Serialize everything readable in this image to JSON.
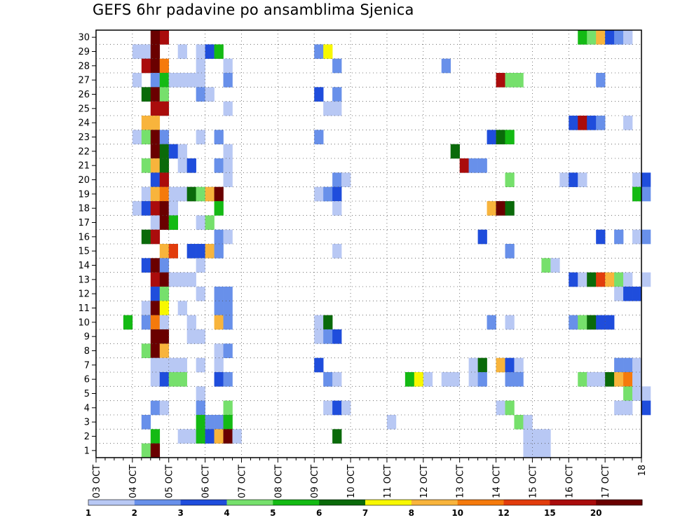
{
  "chart_data": {
    "type": "heatmap",
    "title": "GEFS 6hr padavine po ansamblima Sjenica",
    "xlabel": "",
    "ylabel": "",
    "x_tick_labels": [
      "03 OCT",
      "04 OCT",
      "05 OCT",
      "06 OCT",
      "07 OCT",
      "08 OCT",
      "09 OCT",
      "10 OCT",
      "11 OCT",
      "12 OCT",
      "13 OCT",
      "14 OCT",
      "15 OCT",
      "16 OCT",
      "17 OCT",
      "18"
    ],
    "x_tick_days": [
      0,
      1,
      2,
      3,
      4,
      5,
      6,
      7,
      8,
      9,
      10,
      11,
      12,
      13,
      14,
      15
    ],
    "xlim_days": [
      0,
      15
    ],
    "x_origin_date": "03 OCT 00Z",
    "y_tick_labels": [
      "1",
      "2",
      "3",
      "4",
      "5",
      "6",
      "7",
      "8",
      "9",
      "10",
      "11",
      "12",
      "13",
      "14",
      "15",
      "16",
      "17",
      "18",
      "19",
      "20",
      "21",
      "22",
      "23",
      "24",
      "25",
      "26",
      "27",
      "28",
      "29",
      "30"
    ],
    "ylim": [
      0,
      30
    ],
    "grid": true,
    "colorbar": {
      "labels": [
        "1",
        "2",
        "3",
        "4",
        "5",
        "6",
        "7",
        "8",
        "10",
        "12",
        "15",
        "20"
      ],
      "colors": [
        "#b8c8f4",
        "#6890ea",
        "#1f4ddc",
        "#76e06c",
        "#14ba14",
        "#0a6a0a",
        "#f8f800",
        "#f8b43c",
        "#f57a0c",
        "#e23c0c",
        "#aa0c0c",
        "#6a0000"
      ]
    },
    "cells_note": "each cell: [member, lead_time_days, color_class_index]",
    "cells": [
      [
        30,
        1.75,
        10
      ],
      [
        30,
        1.5,
        11
      ],
      [
        30,
        13.25,
        4
      ],
      [
        30,
        13.5,
        3
      ],
      [
        30,
        13.75,
        7
      ],
      [
        30,
        14,
        2
      ],
      [
        30,
        14.25,
        1
      ],
      [
        30,
        14.5,
        0
      ],
      [
        29,
        1.0,
        0
      ],
      [
        29,
        1.25,
        0
      ],
      [
        29,
        1.5,
        11
      ],
      [
        29,
        2.25,
        0
      ],
      [
        29,
        2.75,
        0
      ],
      [
        29,
        3.0,
        2
      ],
      [
        29,
        3.25,
        4
      ],
      [
        29,
        6.0,
        1
      ],
      [
        29,
        6.25,
        6
      ],
      [
        28,
        1.25,
        10
      ],
      [
        28,
        1.5,
        11
      ],
      [
        28,
        1.75,
        8
      ],
      [
        28,
        2.75,
        0
      ],
      [
        28,
        3.5,
        0
      ],
      [
        28,
        6.5,
        1
      ],
      [
        28,
        9.5,
        1
      ],
      [
        27,
        1.0,
        0
      ],
      [
        27,
        1.5,
        1
      ],
      [
        27,
        1.75,
        4
      ],
      [
        27,
        2.0,
        0
      ],
      [
        27,
        2.25,
        0
      ],
      [
        27,
        2.5,
        0
      ],
      [
        27,
        2.75,
        0
      ],
      [
        27,
        3.5,
        1
      ],
      [
        27,
        11.0,
        10
      ],
      [
        27,
        11.25,
        3
      ],
      [
        27,
        11.5,
        3
      ],
      [
        27,
        13.75,
        1
      ],
      [
        26,
        1.25,
        5
      ],
      [
        26,
        1.5,
        11
      ],
      [
        26,
        1.75,
        3
      ],
      [
        26,
        2.75,
        1
      ],
      [
        26,
        3.0,
        0
      ],
      [
        26,
        6.0,
        2
      ],
      [
        26,
        6.5,
        1
      ],
      [
        25,
        1.5,
        10
      ],
      [
        25,
        1.75,
        10
      ],
      [
        25,
        3.5,
        0
      ],
      [
        25,
        6.25,
        0
      ],
      [
        25,
        6.5,
        0
      ],
      [
        24,
        1.25,
        7
      ],
      [
        24,
        1.5,
        7
      ],
      [
        24,
        13.0,
        2
      ],
      [
        24,
        13.25,
        10
      ],
      [
        24,
        13.5,
        2
      ],
      [
        24,
        13.75,
        1
      ],
      [
        24,
        14.5,
        0
      ],
      [
        23,
        1.0,
        0
      ],
      [
        23,
        1.25,
        3
      ],
      [
        23,
        1.5,
        11
      ],
      [
        23,
        1.75,
        1
      ],
      [
        23,
        2.75,
        0
      ],
      [
        23,
        3.25,
        1
      ],
      [
        23,
        6.0,
        1
      ],
      [
        23,
        10.75,
        2
      ],
      [
        23,
        11.0,
        5
      ],
      [
        23,
        11.25,
        4
      ],
      [
        22,
        1.5,
        11
      ],
      [
        22,
        1.75,
        5
      ],
      [
        22,
        2.0,
        2
      ],
      [
        22,
        2.25,
        0
      ],
      [
        22,
        3.5,
        0
      ],
      [
        22,
        9.75,
        5
      ],
      [
        21,
        1.25,
        3
      ],
      [
        21,
        1.5,
        7
      ],
      [
        21,
        1.75,
        5
      ],
      [
        21,
        2.25,
        0
      ],
      [
        21,
        2.5,
        2
      ],
      [
        21,
        3.25,
        1
      ],
      [
        21,
        3.5,
        0
      ],
      [
        21,
        10.0,
        10
      ],
      [
        21,
        10.25,
        1
      ],
      [
        21,
        10.5,
        1
      ],
      [
        20,
        1.5,
        2
      ],
      [
        20,
        1.75,
        10
      ],
      [
        20,
        3.5,
        0
      ],
      [
        20,
        6.5,
        1
      ],
      [
        20,
        6.75,
        0
      ],
      [
        20,
        11.25,
        3
      ],
      [
        20,
        12.75,
        0
      ],
      [
        20,
        13.0,
        2
      ],
      [
        20,
        13.25,
        0
      ],
      [
        20,
        14.75,
        0
      ],
      [
        20,
        15.0,
        2
      ],
      [
        19,
        1.25,
        0
      ],
      [
        19,
        1.5,
        7
      ],
      [
        19,
        1.75,
        8
      ],
      [
        19,
        2.0,
        0
      ],
      [
        19,
        2.25,
        0
      ],
      [
        19,
        2.5,
        5
      ],
      [
        19,
        2.75,
        3
      ],
      [
        19,
        3.0,
        7
      ],
      [
        19,
        3.25,
        11
      ],
      [
        19,
        6.0,
        0
      ],
      [
        19,
        6.25,
        1
      ],
      [
        19,
        6.5,
        2
      ],
      [
        19,
        14.75,
        4
      ],
      [
        19,
        15.0,
        1
      ],
      [
        18,
        1.0,
        0
      ],
      [
        18,
        1.25,
        2
      ],
      [
        18,
        1.5,
        10
      ],
      [
        18,
        1.75,
        11
      ],
      [
        18,
        2.0,
        0
      ],
      [
        18,
        3.25,
        4
      ],
      [
        18,
        6.5,
        0
      ],
      [
        18,
        10.75,
        7
      ],
      [
        18,
        11.0,
        11
      ],
      [
        18,
        11.25,
        5
      ],
      [
        17,
        1.5,
        0
      ],
      [
        17,
        1.75,
        11
      ],
      [
        17,
        2.0,
        4
      ],
      [
        17,
        2.75,
        0
      ],
      [
        17,
        3.0,
        3
      ],
      [
        16,
        1.25,
        5
      ],
      [
        16,
        1.5,
        10
      ],
      [
        16,
        3.25,
        1
      ],
      [
        16,
        3.5,
        0
      ],
      [
        16,
        10.5,
        2
      ],
      [
        16,
        13.75,
        2
      ],
      [
        16,
        14.25,
        1
      ],
      [
        16,
        14.75,
        0
      ],
      [
        16,
        15.0,
        1
      ],
      [
        15,
        1.75,
        7
      ],
      [
        15,
        2.0,
        9
      ],
      [
        15,
        2.5,
        2
      ],
      [
        15,
        2.75,
        2
      ],
      [
        15,
        3.0,
        7
      ],
      [
        15,
        3.25,
        1
      ],
      [
        15,
        6.5,
        0
      ],
      [
        15,
        11.25,
        1
      ],
      [
        14,
        1.25,
        2
      ],
      [
        14,
        1.5,
        11
      ],
      [
        14,
        1.75,
        1
      ],
      [
        14,
        2.75,
        0
      ],
      [
        14,
        12.25,
        3
      ],
      [
        14,
        12.5,
        0
      ],
      [
        13,
        1.5,
        10
      ],
      [
        13,
        1.75,
        11
      ],
      [
        13,
        2.0,
        0
      ],
      [
        13,
        2.25,
        0
      ],
      [
        13,
        2.5,
        0
      ],
      [
        13,
        13.0,
        2
      ],
      [
        13,
        13.25,
        0
      ],
      [
        13,
        13.5,
        5
      ],
      [
        13,
        13.75,
        9
      ],
      [
        13,
        14.0,
        7
      ],
      [
        13,
        14.25,
        3
      ],
      [
        13,
        14.5,
        0
      ],
      [
        13,
        15.0,
        0
      ],
      [
        12,
        1.5,
        2
      ],
      [
        12,
        1.75,
        3
      ],
      [
        12,
        2.75,
        0
      ],
      [
        12,
        3.25,
        1
      ],
      [
        12,
        3.5,
        1
      ],
      [
        12,
        14.25,
        0
      ],
      [
        12,
        14.5,
        2
      ],
      [
        12,
        14.75,
        2
      ],
      [
        11,
        1.25,
        0
      ],
      [
        11,
        1.5,
        11
      ],
      [
        11,
        1.75,
        6
      ],
      [
        11,
        2.25,
        0
      ],
      [
        11,
        3.25,
        1
      ],
      [
        11,
        3.5,
        1
      ],
      [
        10,
        0.75,
        4
      ],
      [
        10,
        1.25,
        1
      ],
      [
        10,
        1.5,
        8
      ],
      [
        10,
        1.75,
        0
      ],
      [
        10,
        2.5,
        0
      ],
      [
        10,
        3.25,
        7
      ],
      [
        10,
        3.5,
        1
      ],
      [
        10,
        6.0,
        0
      ],
      [
        10,
        6.25,
        5
      ],
      [
        10,
        10.75,
        1
      ],
      [
        10,
        11.25,
        0
      ],
      [
        10,
        13.0,
        1
      ],
      [
        10,
        13.25,
        3
      ],
      [
        10,
        13.5,
        5
      ],
      [
        10,
        13.75,
        2
      ],
      [
        10,
        14.0,
        2
      ],
      [
        9,
        1.5,
        11
      ],
      [
        9,
        1.75,
        11
      ],
      [
        9,
        2.5,
        0
      ],
      [
        9,
        2.75,
        0
      ],
      [
        9,
        6.0,
        0
      ],
      [
        9,
        6.25,
        1
      ],
      [
        9,
        6.5,
        2
      ],
      [
        8,
        1.25,
        3
      ],
      [
        8,
        1.5,
        11
      ],
      [
        8,
        1.75,
        7
      ],
      [
        8,
        3.25,
        0
      ],
      [
        8,
        3.5,
        1
      ],
      [
        7,
        1.5,
        0
      ],
      [
        7,
        1.75,
        0
      ],
      [
        7,
        2.0,
        0
      ],
      [
        7,
        2.25,
        0
      ],
      [
        7,
        2.75,
        0
      ],
      [
        7,
        3.25,
        0
      ],
      [
        7,
        6.0,
        2
      ],
      [
        7,
        10.25,
        0
      ],
      [
        7,
        10.5,
        5
      ],
      [
        7,
        11.0,
        7
      ],
      [
        7,
        11.25,
        2
      ],
      [
        7,
        11.5,
        0
      ],
      [
        7,
        14.25,
        1
      ],
      [
        7,
        14.5,
        1
      ],
      [
        7,
        14.75,
        0
      ],
      [
        6,
        1.5,
        0
      ],
      [
        6,
        1.75,
        2
      ],
      [
        6,
        2.0,
        3
      ],
      [
        6,
        2.25,
        3
      ],
      [
        6,
        3.25,
        2
      ],
      [
        6,
        3.5,
        1
      ],
      [
        6,
        6.25,
        1
      ],
      [
        6,
        6.5,
        0
      ],
      [
        6,
        8.5,
        4
      ],
      [
        6,
        8.75,
        6
      ],
      [
        6,
        9.0,
        0
      ],
      [
        6,
        9.5,
        0
      ],
      [
        6,
        9.75,
        0
      ],
      [
        6,
        10.25,
        0
      ],
      [
        6,
        10.5,
        1
      ],
      [
        6,
        11.25,
        1
      ],
      [
        6,
        11.5,
        1
      ],
      [
        6,
        13.25,
        3
      ],
      [
        6,
        13.5,
        0
      ],
      [
        6,
        13.75,
        0
      ],
      [
        6,
        14.0,
        5
      ],
      [
        6,
        14.25,
        7
      ],
      [
        6,
        14.5,
        8
      ],
      [
        6,
        14.75,
        0
      ],
      [
        5,
        2.75,
        0
      ],
      [
        5,
        14.5,
        3
      ],
      [
        5,
        14.75,
        0
      ],
      [
        5,
        15.0,
        0
      ],
      [
        4,
        1.5,
        1
      ],
      [
        4,
        1.75,
        0
      ],
      [
        4,
        2.75,
        1
      ],
      [
        4,
        3.5,
        3
      ],
      [
        4,
        6.25,
        0
      ],
      [
        4,
        6.5,
        2
      ],
      [
        4,
        6.75,
        0
      ],
      [
        4,
        11.0,
        0
      ],
      [
        4,
        11.25,
        3
      ],
      [
        4,
        14.25,
        0
      ],
      [
        4,
        14.5,
        0
      ],
      [
        4,
        15.0,
        2
      ],
      [
        3,
        1.25,
        1
      ],
      [
        3,
        2.75,
        4
      ],
      [
        3,
        3.0,
        1
      ],
      [
        3,
        3.25,
        1
      ],
      [
        3,
        3.5,
        4
      ],
      [
        3,
        8.0,
        0
      ],
      [
        3,
        11.5,
        3
      ],
      [
        3,
        11.75,
        0
      ],
      [
        2,
        1.5,
        4
      ],
      [
        2,
        2.25,
        0
      ],
      [
        2,
        2.5,
        0
      ],
      [
        2,
        2.75,
        4
      ],
      [
        2,
        3.0,
        2
      ],
      [
        2,
        3.25,
        7
      ],
      [
        2,
        3.5,
        11
      ],
      [
        2,
        3.75,
        0
      ],
      [
        2,
        11.75,
        0
      ],
      [
        2,
        12.0,
        0
      ],
      [
        2,
        12.25,
        0
      ],
      [
        2,
        6.5,
        5
      ],
      [
        1,
        1.25,
        3
      ],
      [
        1,
        1.5,
        11
      ],
      [
        1,
        11.75,
        0
      ],
      [
        1,
        12.0,
        0
      ],
      [
        1,
        12.25,
        0
      ]
    ]
  }
}
